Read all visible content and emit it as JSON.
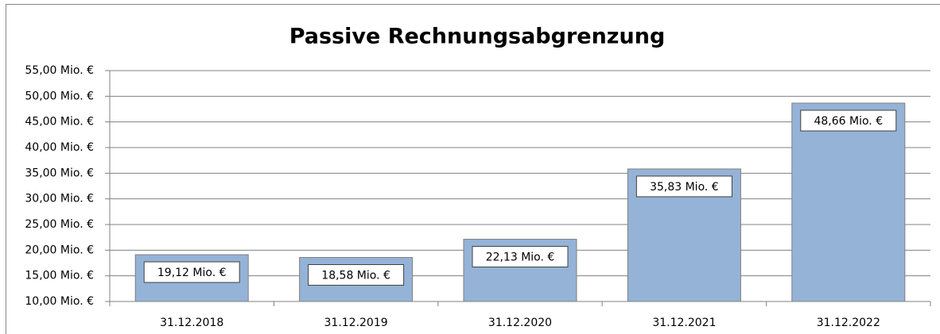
{
  "chart_data": {
    "type": "bar",
    "title": "Passive Rechnungsabgrenzung",
    "categories": [
      "31.12.2018",
      "31.12.2019",
      "31.12.2020",
      "31.12.2021",
      "31.12.2022"
    ],
    "values": [
      19.12,
      18.58,
      22.13,
      35.83,
      48.66
    ],
    "value_labels": [
      "19,12 Mio. €",
      "18,58 Mio. €",
      "22,13 Mio. €",
      "35,83 Mio. €",
      "48,66 Mio. €"
    ],
    "color": "#95b3d7",
    "ylim": [
      10,
      55
    ],
    "yticks": [
      {
        "value": 10,
        "label": "10,00 Mio. €"
      },
      {
        "value": 15,
        "label": "15,00 Mio. €"
      },
      {
        "value": 20,
        "label": "20,00 Mio. €"
      },
      {
        "value": 25,
        "label": "25,00 Mio. €"
      },
      {
        "value": 30,
        "label": "30,00 Mio. €"
      },
      {
        "value": 35,
        "label": "35,00 Mio. €"
      },
      {
        "value": 40,
        "label": "40,00 Mio. €"
      },
      {
        "value": 45,
        "label": "45,00 Mio. €"
      },
      {
        "value": 50,
        "label": "50,00 Mio. €"
      },
      {
        "value": 55,
        "label": "55,00 Mio. €"
      }
    ],
    "grid": true
  }
}
